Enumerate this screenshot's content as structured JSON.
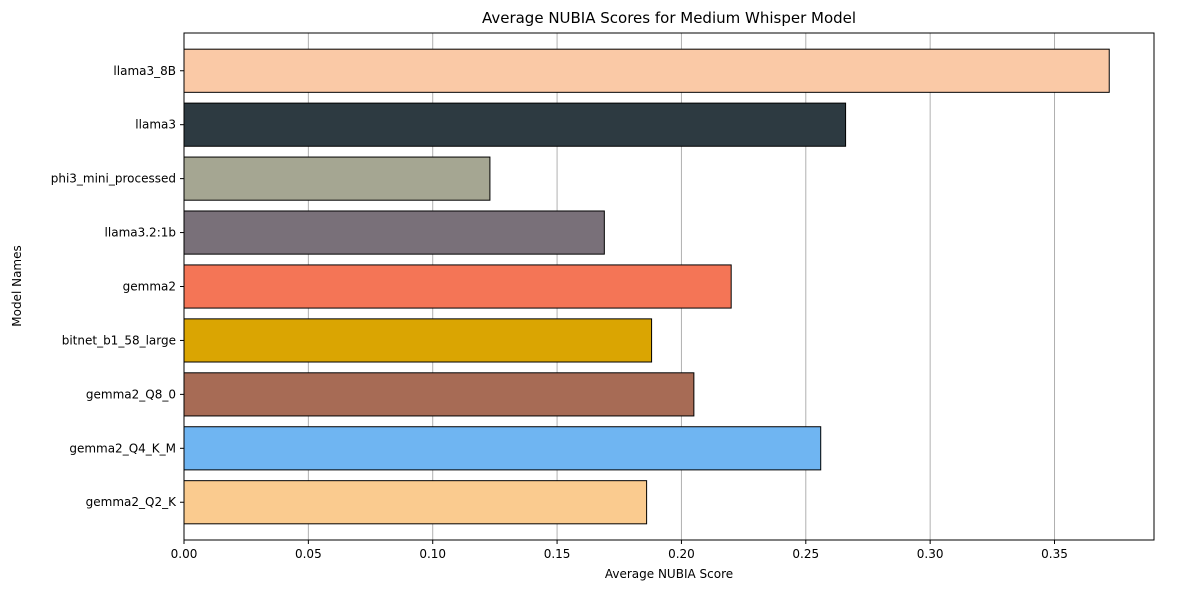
{
  "chart_data": {
    "type": "bar",
    "orientation": "horizontal",
    "title": "Average NUBIA Scores for Medium Whisper Model",
    "xlabel": "Average NUBIA Score",
    "ylabel": "Model Names",
    "xlim": [
      0,
      0.39
    ],
    "xticks": [
      "0.00",
      "0.05",
      "0.10",
      "0.15",
      "0.20",
      "0.25",
      "0.30",
      "0.35"
    ],
    "xtick_values": [
      0,
      0.05,
      0.1,
      0.15,
      0.2,
      0.25,
      0.3,
      0.35
    ],
    "grid": "vertical",
    "categories": [
      "llama3_8B",
      "llama3",
      "phi3_mini_processed",
      "llama3.2:1b",
      "gemma2",
      "bitnet_b1_58_large",
      "gemma2_Q8_0",
      "gemma2_Q4_K_M",
      "gemma2_Q2_K"
    ],
    "values": [
      0.372,
      0.266,
      0.123,
      0.169,
      0.22,
      0.188,
      0.205,
      0.256,
      0.186
    ],
    "colors": [
      "#FAC9A6",
      "#2D3A41",
      "#A5A692",
      "#797079",
      "#F47556",
      "#DAA502",
      "#A76B55",
      "#6FB5F2",
      "#FACB8F"
    ],
    "edge_color": "#000000",
    "grid_color": "#B0B0B0"
  }
}
